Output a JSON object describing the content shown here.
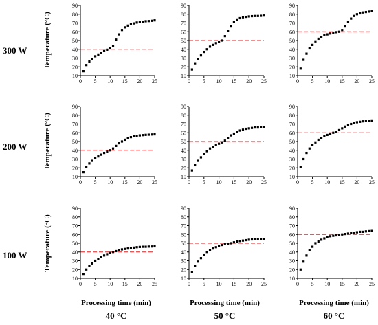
{
  "figure": {
    "row_labels": [
      "300 W",
      "200 W",
      "100 W"
    ],
    "col_labels": [
      "40 °C",
      "50 °C",
      "60 °C"
    ],
    "xlabel": "Processing time (min)",
    "ylabel": "Temperature (°C)",
    "colors": {
      "marker": "#000000",
      "reference_line": "#e02020"
    }
  },
  "chart_data": [
    {
      "type": "scatter",
      "row_label": "300 W",
      "col_label": "40 °C",
      "xlabel": "Processing time (min)",
      "ylabel": "Temperature (°C)",
      "xlim": [
        0,
        25
      ],
      "ylim": [
        10,
        90
      ],
      "xticks": [
        "0",
        "5",
        "10",
        "15",
        "20",
        "25"
      ],
      "yticks": [
        "10",
        "20",
        "30",
        "40",
        "50",
        "60",
        "70",
        "80",
        "90"
      ],
      "reference_line": 40,
      "x": [
        1,
        2,
        3,
        4,
        5,
        6,
        7,
        8,
        9,
        10,
        11,
        12,
        13,
        14,
        15,
        16,
        17,
        18,
        19,
        20,
        21,
        22,
        23,
        24,
        25
      ],
      "y": [
        15,
        22,
        26,
        29,
        32,
        34,
        36,
        38,
        39.5,
        41,
        44,
        51,
        57,
        62,
        65,
        67,
        68.5,
        69.5,
        70.5,
        71,
        71.5,
        72,
        72.2,
        72.5,
        73
      ]
    },
    {
      "type": "scatter",
      "row_label": "300 W",
      "col_label": "50 °C",
      "xlabel": "Processing time (min)",
      "ylabel": "Temperature (°C)",
      "xlim": [
        0,
        25
      ],
      "ylim": [
        10,
        90
      ],
      "xticks": [
        "0",
        "5",
        "10",
        "15",
        "20",
        "25"
      ],
      "yticks": [
        "10",
        "20",
        "30",
        "40",
        "50",
        "60",
        "70",
        "80",
        "90"
      ],
      "reference_line": 50,
      "x": [
        1,
        2,
        3,
        4,
        5,
        6,
        7,
        8,
        9,
        10,
        11,
        12,
        13,
        14,
        15,
        16,
        17,
        18,
        19,
        20,
        21,
        22,
        23,
        24,
        25
      ],
      "y": [
        17,
        24,
        29,
        33,
        37,
        40,
        43,
        45,
        47,
        48.5,
        50,
        55,
        61,
        66,
        71,
        74,
        75.5,
        76.5,
        77,
        77.5,
        77.8,
        78,
        78,
        78.2,
        78.5
      ]
    },
    {
      "type": "scatter",
      "row_label": "300 W",
      "col_label": "60 °C",
      "xlabel": "Processing time (min)",
      "ylabel": "Temperature (°C)",
      "xlim": [
        0,
        25
      ],
      "ylim": [
        10,
        90
      ],
      "xticks": [
        "0",
        "5",
        "10",
        "15",
        "20",
        "25"
      ],
      "yticks": [
        "10",
        "20",
        "30",
        "40",
        "50",
        "60",
        "70",
        "80",
        "90"
      ],
      "reference_line": 60,
      "x": [
        1,
        2,
        3,
        4,
        5,
        6,
        7,
        8,
        9,
        10,
        11,
        12,
        13,
        14,
        15,
        16,
        17,
        18,
        19,
        20,
        21,
        22,
        23,
        24,
        25
      ],
      "y": [
        18,
        28,
        35,
        41,
        45,
        49,
        52,
        54,
        56,
        57,
        58,
        59,
        59.5,
        60,
        62,
        66,
        71,
        75,
        78,
        80,
        81,
        82,
        82.5,
        83,
        83.5
      ]
    },
    {
      "type": "scatter",
      "row_label": "200 W",
      "col_label": "40 °C",
      "xlabel": "Processing time (min)",
      "ylabel": "Temperature (°C)",
      "xlim": [
        0,
        25
      ],
      "ylim": [
        10,
        90
      ],
      "xticks": [
        "0",
        "5",
        "10",
        "15",
        "20",
        "25"
      ],
      "yticks": [
        "10",
        "20",
        "30",
        "40",
        "50",
        "60",
        "70",
        "80",
        "90"
      ],
      "reference_line": 40,
      "x": [
        1,
        2,
        3,
        4,
        5,
        6,
        7,
        8,
        9,
        10,
        11,
        12,
        13,
        14,
        15,
        16,
        17,
        18,
        19,
        20,
        21,
        22,
        23,
        24,
        25
      ],
      "y": [
        15,
        21,
        25,
        28,
        31,
        33,
        35,
        37,
        38.5,
        40,
        42,
        45,
        48,
        50,
        52,
        54,
        55,
        56,
        56.5,
        57,
        57.3,
        57.6,
        57.8,
        58,
        58.2
      ]
    },
    {
      "type": "scatter",
      "row_label": "200 W",
      "col_label": "50 °C",
      "xlabel": "Processing time (min)",
      "ylabel": "Temperature (°C)",
      "xlim": [
        0,
        25
      ],
      "ylim": [
        10,
        90
      ],
      "xticks": [
        "0",
        "5",
        "10",
        "15",
        "20",
        "25"
      ],
      "yticks": [
        "10",
        "20",
        "30",
        "40",
        "50",
        "60",
        "70",
        "80",
        "90"
      ],
      "reference_line": 50,
      "x": [
        1,
        2,
        3,
        4,
        5,
        6,
        7,
        8,
        9,
        10,
        11,
        12,
        13,
        14,
        15,
        16,
        17,
        18,
        19,
        20,
        21,
        22,
        23,
        24,
        25
      ],
      "y": [
        17,
        23,
        28,
        32,
        36,
        39,
        42,
        44,
        46,
        47.5,
        49,
        51,
        54,
        57,
        59,
        61,
        62.5,
        63.5,
        64.5,
        65,
        65.5,
        66,
        66,
        66.2,
        66.5
      ]
    },
    {
      "type": "scatter",
      "row_label": "200 W",
      "col_label": "60 °C",
      "xlabel": "Processing time (min)",
      "ylabel": "Temperature (°C)",
      "xlim": [
        0,
        25
      ],
      "ylim": [
        10,
        90
      ],
      "xticks": [
        "0",
        "5",
        "10",
        "15",
        "20",
        "25"
      ],
      "yticks": [
        "10",
        "20",
        "30",
        "40",
        "50",
        "60",
        "70",
        "80",
        "90"
      ],
      "reference_line": 60,
      "x": [
        1,
        2,
        3,
        4,
        5,
        6,
        7,
        8,
        9,
        10,
        11,
        12,
        13,
        14,
        15,
        16,
        17,
        18,
        19,
        20,
        21,
        22,
        23,
        24,
        25
      ],
      "y": [
        21,
        30,
        37,
        42,
        46,
        49,
        52,
        54,
        56,
        57.5,
        59,
        60,
        61,
        63,
        65,
        67,
        69,
        70,
        71,
        72,
        72.5,
        73,
        73.5,
        73.8,
        74
      ]
    },
    {
      "type": "scatter",
      "row_label": "100 W",
      "col_label": "40 °C",
      "xlabel": "Processing time (min)",
      "ylabel": "Temperature (°C)",
      "xlim": [
        0,
        25
      ],
      "ylim": [
        10,
        90
      ],
      "xticks": [
        "0",
        "5",
        "10",
        "15",
        "20",
        "25"
      ],
      "yticks": [
        "10",
        "20",
        "30",
        "40",
        "50",
        "60",
        "70",
        "80",
        "90"
      ],
      "reference_line": 40,
      "x": [
        1,
        2,
        3,
        4,
        5,
        6,
        7,
        8,
        9,
        10,
        11,
        12,
        13,
        14,
        15,
        16,
        17,
        18,
        19,
        20,
        21,
        22,
        23,
        24,
        25
      ],
      "y": [
        15,
        20,
        24,
        27,
        30,
        32,
        34,
        36,
        37.5,
        39,
        40,
        41,
        42,
        43,
        43.5,
        44,
        44.5,
        45,
        45.5,
        45.8,
        46,
        46,
        46.2,
        46.3,
        46.5
      ]
    },
    {
      "type": "scatter",
      "row_label": "100 W",
      "col_label": "50 °C",
      "xlabel": "Processing time (min)",
      "ylabel": "Temperature (°C)",
      "xlim": [
        0,
        25
      ],
      "ylim": [
        10,
        90
      ],
      "xticks": [
        "0",
        "5",
        "10",
        "15",
        "20",
        "25"
      ],
      "yticks": [
        "10",
        "20",
        "30",
        "40",
        "50",
        "60",
        "70",
        "80",
        "90"
      ],
      "reference_line": 50,
      "x": [
        1,
        2,
        3,
        4,
        5,
        6,
        7,
        8,
        9,
        10,
        11,
        12,
        13,
        14,
        15,
        16,
        17,
        18,
        19,
        20,
        21,
        22,
        23,
        24,
        25
      ],
      "y": [
        17,
        24,
        29,
        33,
        37,
        40,
        42,
        44,
        45.5,
        47,
        48,
        49,
        49.5,
        50,
        51,
        52,
        52.5,
        53,
        53.5,
        54,
        54.3,
        54.5,
        54.7,
        55,
        55
      ]
    },
    {
      "type": "scatter",
      "row_label": "100 W",
      "col_label": "60 °C",
      "xlabel": "Processing time (min)",
      "ylabel": "Temperature (°C)",
      "xlim": [
        0,
        25
      ],
      "ylim": [
        10,
        90
      ],
      "xticks": [
        "0",
        "5",
        "10",
        "15",
        "20",
        "25"
      ],
      "yticks": [
        "10",
        "20",
        "30",
        "40",
        "50",
        "60",
        "70",
        "80",
        "90"
      ],
      "reference_line": 60,
      "x": [
        1,
        2,
        3,
        4,
        5,
        6,
        7,
        8,
        9,
        10,
        11,
        12,
        13,
        14,
        15,
        16,
        17,
        18,
        19,
        20,
        21,
        22,
        23,
        24,
        25
      ],
      "y": [
        20,
        29,
        36,
        42,
        46,
        50,
        52,
        54,
        55.5,
        57,
        58,
        58.5,
        59,
        59.5,
        60,
        60.5,
        61,
        61.5,
        62,
        62.5,
        63,
        63,
        63.5,
        63.8,
        64
      ]
    }
  ]
}
